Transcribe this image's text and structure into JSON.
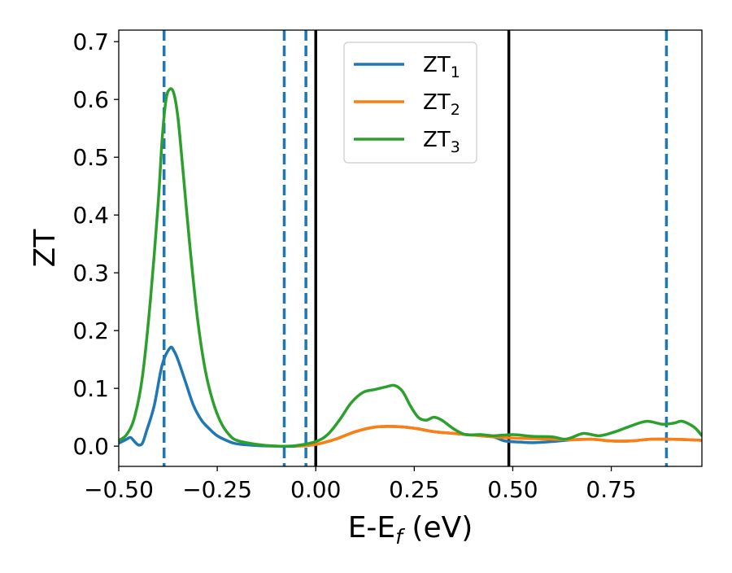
{
  "chart_data": {
    "type": "line",
    "title": "",
    "xlabel_main": "E-E",
    "xlabel_sub": "f",
    "xlabel_unit": " (eV)",
    "ylabel": "ZT",
    "xlim": [
      -0.5,
      0.98
    ],
    "ylim": [
      -0.035,
      0.72
    ],
    "xticks": [
      -0.5,
      -0.25,
      0.0,
      0.25,
      0.5,
      0.75
    ],
    "xtick_labels": [
      "−0.50",
      "−0.25",
      "0.00",
      "0.25",
      "0.50",
      "0.75"
    ],
    "yticks": [
      0.0,
      0.1,
      0.2,
      0.3,
      0.4,
      0.5,
      0.6,
      0.7
    ],
    "ytick_labels": [
      "0.0",
      "0.1",
      "0.2",
      "0.3",
      "0.4",
      "0.5",
      "0.6",
      "0.7"
    ],
    "grid": false,
    "legend_position": "upper-center",
    "series": [
      {
        "name": "ZT",
        "name_sub": "1",
        "color": "#1f77b4",
        "points": [
          [
            -0.5,
            0.005
          ],
          [
            -0.48,
            0.012
          ],
          [
            -0.47,
            0.015
          ],
          [
            -0.46,
            0.008
          ],
          [
            -0.45,
            0.002
          ],
          [
            -0.44,
            0.005
          ],
          [
            -0.43,
            0.025
          ],
          [
            -0.41,
            0.07
          ],
          [
            -0.39,
            0.14
          ],
          [
            -0.37,
            0.17
          ],
          [
            -0.36,
            0.165
          ],
          [
            -0.35,
            0.15
          ],
          [
            -0.33,
            0.11
          ],
          [
            -0.31,
            0.07
          ],
          [
            -0.29,
            0.045
          ],
          [
            -0.27,
            0.03
          ],
          [
            -0.25,
            0.018
          ],
          [
            -0.22,
            0.008
          ],
          [
            -0.2,
            0.004
          ],
          [
            -0.15,
            0.001
          ],
          [
            -0.1,
            0.0
          ],
          [
            -0.05,
            0.0
          ],
          [
            0.0,
            0.003
          ],
          [
            0.05,
            0.012
          ],
          [
            0.1,
            0.025
          ],
          [
            0.15,
            0.033
          ],
          [
            0.2,
            0.034
          ],
          [
            0.25,
            0.031
          ],
          [
            0.3,
            0.025
          ],
          [
            0.35,
            0.022
          ],
          [
            0.4,
            0.019
          ],
          [
            0.45,
            0.016
          ],
          [
            0.48,
            0.009
          ],
          [
            0.52,
            0.007
          ],
          [
            0.55,
            0.006
          ],
          [
            0.6,
            0.008
          ],
          [
            0.65,
            0.011
          ],
          [
            0.7,
            0.012
          ],
          [
            0.75,
            0.009
          ],
          [
            0.8,
            0.009
          ],
          [
            0.85,
            0.012
          ],
          [
            0.9,
            0.012
          ],
          [
            0.95,
            0.011
          ],
          [
            0.98,
            0.01
          ]
        ]
      },
      {
        "name": "ZT",
        "name_sub": "2",
        "color": "#ff7f0e",
        "points": [
          [
            -0.05,
            0.0
          ],
          [
            0.0,
            0.003
          ],
          [
            0.05,
            0.012
          ],
          [
            0.1,
            0.025
          ],
          [
            0.15,
            0.033
          ],
          [
            0.2,
            0.034
          ],
          [
            0.25,
            0.031
          ],
          [
            0.3,
            0.025
          ],
          [
            0.35,
            0.022
          ],
          [
            0.4,
            0.019
          ],
          [
            0.45,
            0.016
          ],
          [
            0.5,
            0.014
          ],
          [
            0.55,
            0.013
          ],
          [
            0.6,
            0.012
          ],
          [
            0.65,
            0.011
          ],
          [
            0.7,
            0.012
          ],
          [
            0.75,
            0.009
          ],
          [
            0.8,
            0.009
          ],
          [
            0.85,
            0.012
          ],
          [
            0.9,
            0.012
          ],
          [
            0.95,
            0.011
          ],
          [
            0.98,
            0.01
          ]
        ]
      },
      {
        "name": "ZT",
        "name_sub": "3",
        "color": "#2ca02c",
        "points": [
          [
            -0.5,
            0.01
          ],
          [
            -0.48,
            0.02
          ],
          [
            -0.46,
            0.05
          ],
          [
            -0.44,
            0.12
          ],
          [
            -0.42,
            0.25
          ],
          [
            -0.4,
            0.42
          ],
          [
            -0.39,
            0.53
          ],
          [
            -0.38,
            0.6
          ],
          [
            -0.37,
            0.618
          ],
          [
            -0.36,
            0.61
          ],
          [
            -0.35,
            0.57
          ],
          [
            -0.34,
            0.5
          ],
          [
            -0.32,
            0.35
          ],
          [
            -0.3,
            0.22
          ],
          [
            -0.28,
            0.13
          ],
          [
            -0.26,
            0.075
          ],
          [
            -0.24,
            0.04
          ],
          [
            -0.22,
            0.02
          ],
          [
            -0.2,
            0.01
          ],
          [
            -0.15,
            0.003
          ],
          [
            -0.1,
            0.0
          ],
          [
            -0.05,
            0.001
          ],
          [
            0.0,
            0.008
          ],
          [
            0.03,
            0.02
          ],
          [
            0.06,
            0.045
          ],
          [
            0.09,
            0.075
          ],
          [
            0.12,
            0.093
          ],
          [
            0.15,
            0.098
          ],
          [
            0.18,
            0.103
          ],
          [
            0.2,
            0.105
          ],
          [
            0.22,
            0.095
          ],
          [
            0.24,
            0.07
          ],
          [
            0.26,
            0.05
          ],
          [
            0.28,
            0.045
          ],
          [
            0.3,
            0.05
          ],
          [
            0.32,
            0.045
          ],
          [
            0.35,
            0.03
          ],
          [
            0.38,
            0.02
          ],
          [
            0.42,
            0.02
          ],
          [
            0.45,
            0.018
          ],
          [
            0.5,
            0.02
          ],
          [
            0.55,
            0.017
          ],
          [
            0.6,
            0.016
          ],
          [
            0.63,
            0.012
          ],
          [
            0.65,
            0.015
          ],
          [
            0.68,
            0.022
          ],
          [
            0.72,
            0.018
          ],
          [
            0.76,
            0.025
          ],
          [
            0.8,
            0.035
          ],
          [
            0.84,
            0.043
          ],
          [
            0.88,
            0.038
          ],
          [
            0.91,
            0.04
          ],
          [
            0.93,
            0.043
          ],
          [
            0.96,
            0.033
          ],
          [
            0.98,
            0.018
          ]
        ]
      }
    ],
    "vlines_dashed": [
      -0.385,
      -0.08,
      -0.025,
      0.89
    ],
    "vlines_solid": [
      0.0,
      0.49
    ],
    "vline_dashed_color": "#1f77b4",
    "vline_solid_color": "#000000"
  }
}
